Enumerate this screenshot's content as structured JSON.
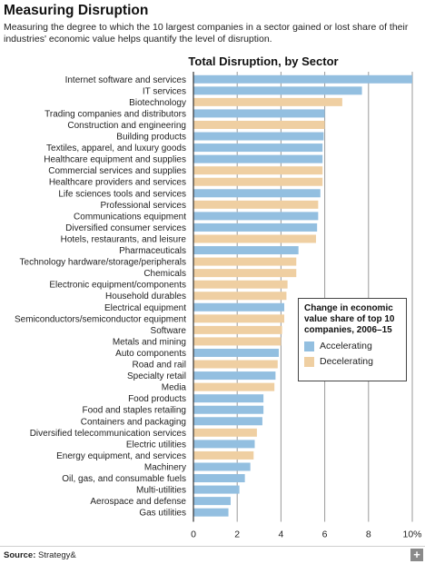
{
  "header": {
    "title": "Measuring Disruption",
    "subtitle": "Measuring the degree to which the 10 largest companies in a sector gained or lost share of their industries' economic value helps quantify the level of disruption."
  },
  "footer": {
    "source_label": "Source:",
    "source_value": "Strategy&",
    "plus_label": "+"
  },
  "colors": {
    "accelerating": "#93bfe0",
    "decelerating": "#efcfa2",
    "gridline": "#9a9a9a",
    "axis": "#333333"
  },
  "chart_data": {
    "type": "bar",
    "orientation": "horizontal",
    "title": "Total Disruption, by Sector",
    "xlim": [
      0,
      10
    ],
    "xticks": [
      "0",
      "2",
      "4",
      "6",
      "8",
      "10%"
    ],
    "xtick_values": [
      0,
      2,
      4,
      6,
      8,
      10
    ],
    "grid": true,
    "legend": {
      "title": "Change in economic value share of top 10 companies, 2006–15",
      "placement": "right",
      "entries": [
        {
          "label": "Accelerating",
          "group": "accelerating"
        },
        {
          "label": "Decelerating",
          "group": "decelerating"
        }
      ]
    },
    "bars": [
      {
        "label": "Internet software and services",
        "value": 10.0,
        "group": "accelerating"
      },
      {
        "label": "IT services",
        "value": 7.7,
        "group": "accelerating"
      },
      {
        "label": "Biotechnology",
        "value": 6.8,
        "group": "decelerating"
      },
      {
        "label": "Trading companies and distributors",
        "value": 6.0,
        "group": "accelerating"
      },
      {
        "label": "Construction and engineering",
        "value": 6.0,
        "group": "decelerating"
      },
      {
        "label": "Building products",
        "value": 5.95,
        "group": "accelerating"
      },
      {
        "label": "Textiles, apparel, and luxury goods",
        "value": 5.9,
        "group": "accelerating"
      },
      {
        "label": "Healthcare equipment and supplies",
        "value": 5.9,
        "group": "accelerating"
      },
      {
        "label": "Commercial services and supplies",
        "value": 5.9,
        "group": "decelerating"
      },
      {
        "label": "Healthcare providers and services",
        "value": 5.9,
        "group": "decelerating"
      },
      {
        "label": "Life sciences tools and services",
        "value": 5.8,
        "group": "accelerating"
      },
      {
        "label": "Professional services",
        "value": 5.7,
        "group": "decelerating"
      },
      {
        "label": "Communications equipment",
        "value": 5.7,
        "group": "accelerating"
      },
      {
        "label": "Diversified consumer services",
        "value": 5.65,
        "group": "accelerating"
      },
      {
        "label": "Hotels, restaurants, and leisure",
        "value": 5.6,
        "group": "decelerating"
      },
      {
        "label": "Pharmaceuticals",
        "value": 4.8,
        "group": "accelerating"
      },
      {
        "label": "Technology hardware/storage/peripherals",
        "value": 4.7,
        "group": "decelerating"
      },
      {
        "label": "Chemicals",
        "value": 4.7,
        "group": "decelerating"
      },
      {
        "label": "Electronic equipment/components",
        "value": 4.3,
        "group": "decelerating"
      },
      {
        "label": "Household durables",
        "value": 4.25,
        "group": "decelerating"
      },
      {
        "label": "Electrical equipment",
        "value": 4.15,
        "group": "accelerating"
      },
      {
        "label": "Semiconductors/semiconductor equipment",
        "value": 4.15,
        "group": "decelerating"
      },
      {
        "label": "Software",
        "value": 4.05,
        "group": "decelerating"
      },
      {
        "label": "Metals and mining",
        "value": 4.0,
        "group": "decelerating"
      },
      {
        "label": "Auto components",
        "value": 3.9,
        "group": "accelerating"
      },
      {
        "label": "Road and rail",
        "value": 3.85,
        "group": "decelerating"
      },
      {
        "label": "Specialty retail",
        "value": 3.75,
        "group": "accelerating"
      },
      {
        "label": "Media",
        "value": 3.7,
        "group": "decelerating"
      },
      {
        "label": "Food products",
        "value": 3.2,
        "group": "accelerating"
      },
      {
        "label": "Food and staples retailing",
        "value": 3.2,
        "group": "accelerating"
      },
      {
        "label": "Containers and packaging",
        "value": 3.15,
        "group": "accelerating"
      },
      {
        "label": "Diversified telecommunication services",
        "value": 2.9,
        "group": "decelerating"
      },
      {
        "label": "Electric utilities",
        "value": 2.8,
        "group": "accelerating"
      },
      {
        "label": "Energy equipment, and services",
        "value": 2.75,
        "group": "decelerating"
      },
      {
        "label": "Machinery",
        "value": 2.6,
        "group": "accelerating"
      },
      {
        "label": "Oil, gas, and consumable fuels",
        "value": 2.35,
        "group": "accelerating"
      },
      {
        "label": "Multi-utilities",
        "value": 2.1,
        "group": "accelerating"
      },
      {
        "label": "Aerospace and defense",
        "value": 1.7,
        "group": "accelerating"
      },
      {
        "label": "Gas utilities",
        "value": 1.6,
        "group": "accelerating"
      }
    ]
  }
}
